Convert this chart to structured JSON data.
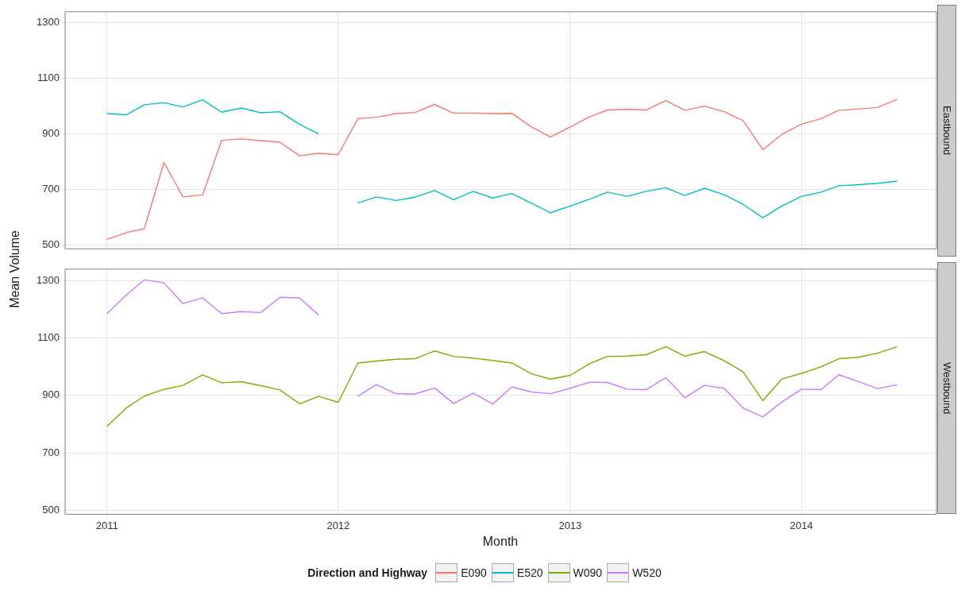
{
  "chart_data": [
    {
      "type": "line",
      "title": "Eastbound",
      "x": [
        "2011-01",
        "2011-02",
        "2011-03",
        "2011-04",
        "2011-05",
        "2011-06",
        "2011-07",
        "2011-08",
        "2011-09",
        "2011-10",
        "2011-11",
        "2011-12",
        "2012-01",
        "2012-02",
        "2012-03",
        "2012-04",
        "2012-05",
        "2012-06",
        "2012-07",
        "2012-08",
        "2012-09",
        "2012-10",
        "2012-11",
        "2012-12",
        "2013-01",
        "2013-02",
        "2013-03",
        "2013-04",
        "2013-05",
        "2013-06",
        "2013-07",
        "2013-08",
        "2013-09",
        "2013-10",
        "2013-11",
        "2013-12",
        "2014-01",
        "2014-02",
        "2014-03",
        "2014-04",
        "2014-05",
        "2014-06"
      ],
      "series": [
        {
          "name": "E090",
          "color": "#f8766d",
          "values": [
            520,
            545,
            558,
            797,
            673,
            680,
            877,
            882,
            876,
            870,
            821,
            830,
            825,
            955,
            960,
            973,
            977,
            1006,
            975,
            975,
            973,
            974,
            925,
            889,
            925,
            962,
            986,
            989,
            986,
            1020,
            985,
            1000,
            980,
            948,
            843,
            898,
            935,
            955,
            985,
            990,
            995,
            1025
          ]
        },
        {
          "name": "E520",
          "color": "#00bfc4",
          "values": [
            973,
            969,
            1005,
            1012,
            997,
            1023,
            978,
            993,
            976,
            980,
            934,
            900,
            null,
            651,
            673,
            660,
            672,
            696,
            663,
            693,
            669,
            685,
            650,
            616,
            640,
            665,
            690,
            675,
            693,
            706,
            678,
            704,
            681,
            646,
            598,
            640,
            675,
            690,
            713,
            717,
            722,
            730
          ]
        }
      ],
      "xlim": [
        "2010-10-27",
        "2014-08-02"
      ],
      "xticks": [
        "2011",
        "2012",
        "2013",
        "2014"
      ],
      "ylim": [
        486,
        1340
      ],
      "yticks": [
        500,
        700,
        900,
        1100,
        1300
      ],
      "grid": true,
      "tick_labels": "y",
      "marker": "none",
      "legend": "bottom"
    },
    {
      "type": "line",
      "title": "Westbound",
      "xlabel": "Month",
      "ylabel": "Mean Volume",
      "legend_title": "Direction and Highway",
      "x": [
        "2011-01",
        "2011-02",
        "2011-03",
        "2011-04",
        "2011-05",
        "2011-06",
        "2011-07",
        "2011-08",
        "2011-09",
        "2011-10",
        "2011-11",
        "2011-12",
        "2012-01",
        "2012-02",
        "2012-03",
        "2012-04",
        "2012-05",
        "2012-06",
        "2012-07",
        "2012-08",
        "2012-09",
        "2012-10",
        "2012-11",
        "2012-12",
        "2013-01",
        "2013-02",
        "2013-03",
        "2013-04",
        "2013-05",
        "2013-06",
        "2013-07",
        "2013-08",
        "2013-09",
        "2013-10",
        "2013-11",
        "2013-12",
        "2014-01",
        "2014-02",
        "2014-03",
        "2014-04",
        "2014-05",
        "2014-06"
      ],
      "series": [
        {
          "name": "W090",
          "color": "#7cae00",
          "values": [
            792,
            857,
            898,
            921,
            935,
            972,
            944,
            948,
            934,
            919,
            871,
            897,
            876,
            1013,
            1020,
            1026,
            1028,
            1055,
            1036,
            1030,
            1022,
            1013,
            975,
            957,
            970,
            1011,
            1036,
            1037,
            1042,
            1070,
            1037,
            1053,
            1021,
            982,
            882,
            957,
            977,
            1000,
            1028,
            1033,
            1047,
            1070
          ]
        },
        {
          "name": "W520",
          "color": "#c77cff",
          "values": [
            1185,
            1250,
            1303,
            1292,
            1220,
            1240,
            1185,
            1192,
            1189,
            1242,
            1240,
            1180,
            null,
            897,
            938,
            906,
            905,
            926,
            872,
            908,
            870,
            930,
            912,
            906,
            925,
            946,
            945,
            922,
            920,
            962,
            892,
            935,
            925,
            856,
            825,
            877,
            922,
            920,
            972,
            948,
            924,
            937
          ]
        }
      ],
      "xlim": [
        "2010-10-27",
        "2014-08-02"
      ],
      "xticks": [
        "2011",
        "2012",
        "2013",
        "2014"
      ],
      "ylim": [
        486,
        1340
      ],
      "yticks": [
        500,
        700,
        900,
        1100,
        1300
      ],
      "grid": true,
      "marker": "none",
      "legend": "bottom"
    }
  ]
}
